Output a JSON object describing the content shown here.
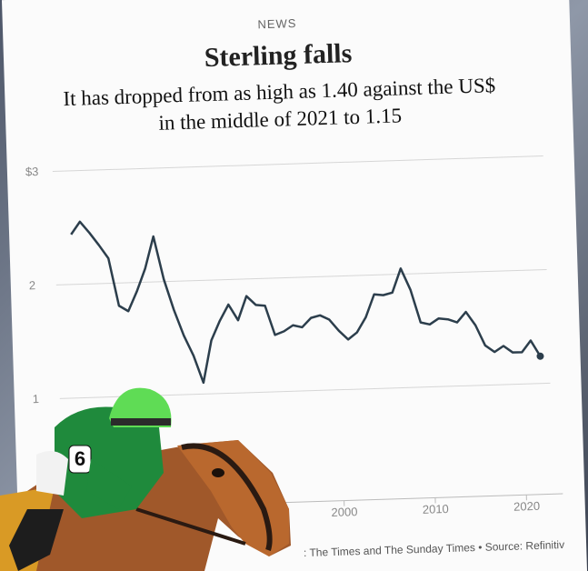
{
  "chart_data": {
    "type": "line",
    "label": "NEWS",
    "title": "Sterling falls",
    "subtitle": [
      "It has dropped from as high as 1.40 against the US$",
      "in the middle of 2021 to 1.15"
    ],
    "source": ": The Times and The Sunday Times • Source: Refinitiv",
    "x": [
      1971,
      1972,
      1973,
      1974,
      1975,
      1976,
      1977,
      1978,
      1979,
      1980,
      1981,
      1982,
      1983,
      1984,
      1985,
      1986,
      1987,
      1988,
      1989,
      1990,
      1991,
      1992,
      1993,
      1994,
      1995,
      1996,
      1997,
      1998,
      1999,
      2000,
      2001,
      2002,
      2003,
      2004,
      2005,
      2006,
      2007,
      2008,
      2009,
      2010,
      2011,
      2012,
      2013,
      2014,
      2015,
      2016,
      2017,
      2018,
      2019,
      2020,
      2021,
      2022
    ],
    "values": [
      2.44,
      2.55,
      2.45,
      2.34,
      2.22,
      1.8,
      1.75,
      1.92,
      2.12,
      2.4,
      2.02,
      1.75,
      1.52,
      1.34,
      1.1,
      1.47,
      1.64,
      1.78,
      1.64,
      1.85,
      1.77,
      1.76,
      1.5,
      1.53,
      1.58,
      1.56,
      1.64,
      1.66,
      1.62,
      1.52,
      1.44,
      1.5,
      1.63,
      1.83,
      1.82,
      1.84,
      2.05,
      1.86,
      1.57,
      1.55,
      1.6,
      1.59,
      1.56,
      1.65,
      1.53,
      1.35,
      1.29,
      1.34,
      1.28,
      1.28,
      1.38,
      1.24
    ],
    "color": "#2c3e4c",
    "xlim": [
      1967,
      2024
    ],
    "ylim": [
      0,
      3
    ],
    "xticks": [
      2000,
      2010,
      2020
    ],
    "yticks": [
      {
        "value": 3,
        "label": "$3"
      },
      2,
      1
    ],
    "grid": true
  }
}
